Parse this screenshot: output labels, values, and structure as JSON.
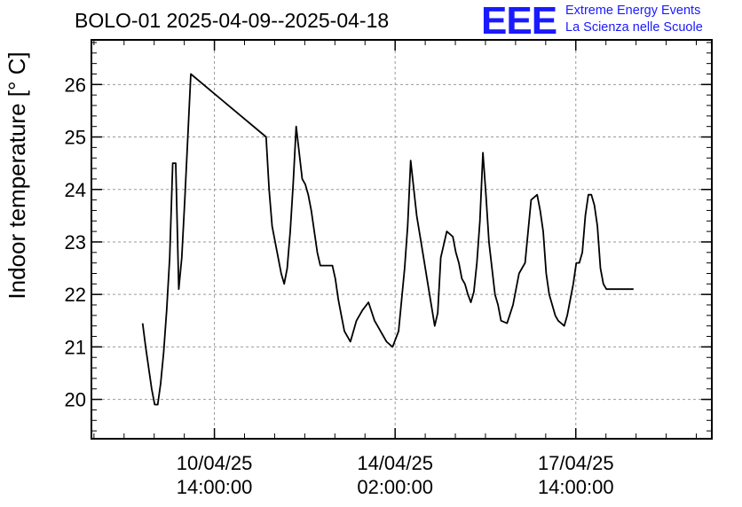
{
  "header": {
    "title": "BOLO-01 2025-04-09--2025-04-18",
    "logo": "EEE",
    "logo_line1": "Extreme Energy Events",
    "logo_line2": "La Scienza nelle Scuole"
  },
  "colors": {
    "line": "#000000",
    "grid": "#999999",
    "logo": "#1a1aff"
  },
  "chart_data": {
    "type": "line",
    "title": "BOLO-01 2025-04-09--2025-04-18",
    "ylabel": "Indoor temperature [° C]",
    "xlabel": "",
    "ylim": [
      19.25,
      26.85
    ],
    "xlim": [
      0.0,
      10.3
    ],
    "yticks": [
      20,
      21,
      22,
      23,
      24,
      25,
      26
    ],
    "xticks": [
      {
        "x": 2.042,
        "line1": "10/04/25",
        "line2": "14:00:00"
      },
      {
        "x": 5.042,
        "line1": "14/04/25",
        "line2": "02:00:00"
      },
      {
        "x": 8.042,
        "line1": "17/04/25",
        "line2": "14:00:00"
      }
    ],
    "grid": true,
    "series": [
      {
        "x": [
          0.85,
          0.9,
          0.95,
          1.0,
          1.05,
          1.1,
          1.15,
          1.2,
          1.25,
          1.3,
          1.35,
          1.4,
          1.45,
          1.5,
          1.55,
          1.65,
          2.9,
          2.95,
          3.0,
          3.05,
          3.1,
          3.15,
          3.2,
          3.25,
          3.3,
          3.35,
          3.4,
          3.45,
          3.5,
          3.55,
          3.6,
          3.65,
          3.7,
          3.75,
          3.8,
          3.85,
          3.9,
          3.95,
          4.0,
          4.05,
          4.1,
          4.15,
          4.2,
          4.3,
          4.4,
          4.5,
          4.6,
          4.7,
          4.75,
          4.8,
          4.85,
          4.9,
          5.0,
          5.1,
          5.15,
          5.2,
          5.25,
          5.3,
          5.4,
          5.5,
          5.6,
          5.7,
          5.75,
          5.8,
          5.9,
          6.0,
          6.05,
          6.1,
          6.15,
          6.2,
          6.25,
          6.3,
          6.35,
          6.4,
          6.45,
          6.5,
          6.55,
          6.6,
          6.65,
          6.7,
          6.75,
          6.8,
          6.9,
          7.0,
          7.1,
          7.2,
          7.3,
          7.4,
          7.45,
          7.5,
          7.55,
          7.6,
          7.65,
          7.7,
          7.75,
          7.8,
          7.85,
          7.9,
          7.95,
          8.0,
          8.05,
          8.1,
          8.15,
          8.2,
          8.25,
          8.3,
          8.35,
          8.4,
          8.45,
          8.5,
          8.55,
          8.6,
          8.65,
          8.7,
          8.75,
          8.8,
          8.85,
          8.9,
          8.95,
          9.0
        ],
        "y": [
          21.45,
          21.0,
          20.6,
          20.2,
          19.9,
          19.9,
          20.3,
          20.9,
          21.7,
          22.7,
          24.5,
          24.5,
          22.1,
          22.7,
          23.8,
          26.2,
          25.0,
          24.0,
          23.3,
          23.0,
          22.7,
          22.4,
          22.2,
          22.5,
          23.2,
          24.1,
          25.2,
          24.7,
          24.2,
          24.1,
          23.9,
          23.6,
          23.2,
          22.8,
          22.55,
          22.55,
          22.55,
          22.55,
          22.55,
          22.3,
          21.9,
          21.6,
          21.3,
          21.1,
          21.5,
          21.7,
          21.85,
          21.5,
          21.4,
          21.3,
          21.2,
          21.1,
          21.0,
          21.3,
          21.9,
          22.5,
          23.3,
          24.55,
          23.5,
          22.8,
          22.1,
          21.4,
          21.65,
          22.7,
          23.2,
          23.1,
          22.8,
          22.6,
          22.3,
          22.2,
          22.0,
          21.85,
          22.05,
          22.6,
          23.4,
          24.7,
          23.9,
          23.0,
          22.5,
          22.0,
          21.8,
          21.5,
          21.45,
          21.8,
          22.4,
          22.6,
          23.8,
          23.9,
          23.6,
          23.2,
          22.4,
          22.0,
          21.8,
          21.6,
          21.5,
          21.45,
          21.4,
          21.6,
          21.9,
          22.2,
          22.6,
          22.6,
          22.8,
          23.5,
          23.9,
          23.9,
          23.7,
          23.3,
          22.5,
          22.2,
          22.1,
          22.1,
          22.1,
          22.1,
          22.1,
          22.1,
          22.1,
          22.1,
          22.1,
          22.1
        ]
      }
    ]
  }
}
